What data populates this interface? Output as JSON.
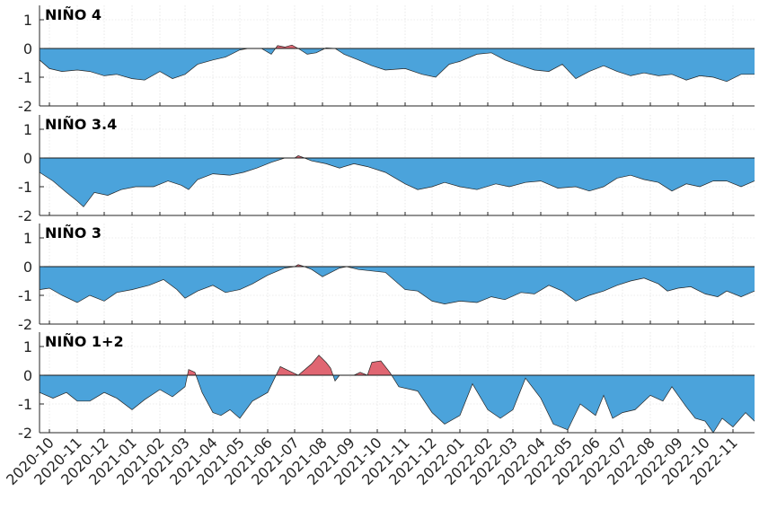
{
  "chart_data": {
    "type": "area",
    "x_axis": {
      "type": "date",
      "start": "2020-09-20",
      "end": "2022-11-25",
      "ticks": [
        "2020-10",
        "2020-11",
        "2020-12",
        "2021-01",
        "2021-02",
        "2021-03",
        "2021-04",
        "2021-05",
        "2021-06",
        "2021-07",
        "2021-08",
        "2021-09",
        "2021-10",
        "2021-11",
        "2021-12",
        "2022-01",
        "2022-02",
        "2022-03",
        "2022-04",
        "2022-05",
        "2022-06",
        "2022-07",
        "2022-08",
        "2022-09",
        "2022-10",
        "2022-11"
      ]
    },
    "ylim": [
      -2,
      1.5
    ],
    "yticks": [
      -2,
      -1,
      0,
      1
    ],
    "grid": true,
    "colors": {
      "positive": "#e06672",
      "negative": "#4ba3db",
      "line": "#262626"
    },
    "panels": [
      {
        "title": "NIÑO 4",
        "points": [
          [
            "2020-09-20",
            -0.4
          ],
          [
            "2020-10-01",
            -0.7
          ],
          [
            "2020-10-15",
            -0.8
          ],
          [
            "2020-11-01",
            -0.75
          ],
          [
            "2020-11-15",
            -0.8
          ],
          [
            "2020-12-01",
            -0.95
          ],
          [
            "2020-12-15",
            -0.9
          ],
          [
            "2021-01-01",
            -1.05
          ],
          [
            "2021-01-15",
            -1.1
          ],
          [
            "2021-02-01",
            -0.8
          ],
          [
            "2021-02-15",
            -1.05
          ],
          [
            "2021-03-01",
            -0.9
          ],
          [
            "2021-03-15",
            -0.55
          ],
          [
            "2021-04-01",
            -0.4
          ],
          [
            "2021-04-15",
            -0.3
          ],
          [
            "2021-05-01",
            -0.05
          ],
          [
            "2021-05-10",
            0.0
          ],
          [
            "2021-05-25",
            0.0
          ],
          [
            "2021-06-05",
            -0.2
          ],
          [
            "2021-06-12",
            0.1
          ],
          [
            "2021-06-20",
            0.05
          ],
          [
            "2021-06-28",
            0.12
          ],
          [
            "2021-07-05",
            0.0
          ],
          [
            "2021-07-15",
            -0.2
          ],
          [
            "2021-07-25",
            -0.15
          ],
          [
            "2021-08-05",
            0.02
          ],
          [
            "2021-08-15",
            0.0
          ],
          [
            "2021-08-25",
            -0.2
          ],
          [
            "2021-09-10",
            -0.4
          ],
          [
            "2021-09-25",
            -0.6
          ],
          [
            "2021-10-10",
            -0.75
          ],
          [
            "2021-11-01",
            -0.7
          ],
          [
            "2021-11-20",
            -0.9
          ],
          [
            "2021-12-05",
            -1.0
          ],
          [
            "2021-12-20",
            -0.55
          ],
          [
            "2022-01-01",
            -0.45
          ],
          [
            "2022-01-20",
            -0.2
          ],
          [
            "2022-02-05",
            -0.15
          ],
          [
            "2022-02-20",
            -0.4
          ],
          [
            "2022-03-10",
            -0.6
          ],
          [
            "2022-03-25",
            -0.75
          ],
          [
            "2022-04-10",
            -0.8
          ],
          [
            "2022-04-25",
            -0.55
          ],
          [
            "2022-05-10",
            -1.05
          ],
          [
            "2022-05-25",
            -0.8
          ],
          [
            "2022-06-10",
            -0.6
          ],
          [
            "2022-06-25",
            -0.8
          ],
          [
            "2022-07-10",
            -0.95
          ],
          [
            "2022-07-25",
            -0.85
          ],
          [
            "2022-08-10",
            -0.95
          ],
          [
            "2022-08-25",
            -0.9
          ],
          [
            "2022-09-10",
            -1.1
          ],
          [
            "2022-09-25",
            -0.95
          ],
          [
            "2022-10-10",
            -1.0
          ],
          [
            "2022-10-25",
            -1.15
          ],
          [
            "2022-11-10",
            -0.9
          ],
          [
            "2022-11-25",
            -0.9
          ]
        ]
      },
      {
        "title": "NIÑO 3.4",
        "points": [
          [
            "2020-09-20",
            -0.5
          ],
          [
            "2020-10-05",
            -0.8
          ],
          [
            "2020-10-20",
            -1.2
          ],
          [
            "2020-11-01",
            -1.5
          ],
          [
            "2020-11-08",
            -1.7
          ],
          [
            "2020-11-20",
            -1.2
          ],
          [
            "2020-12-05",
            -1.3
          ],
          [
            "2020-12-20",
            -1.1
          ],
          [
            "2021-01-05",
            -1.0
          ],
          [
            "2021-01-25",
            -1.0
          ],
          [
            "2021-02-10",
            -0.8
          ],
          [
            "2021-02-25",
            -0.95
          ],
          [
            "2021-03-05",
            -1.1
          ],
          [
            "2021-03-15",
            -0.75
          ],
          [
            "2021-04-01",
            -0.55
          ],
          [
            "2021-04-20",
            -0.6
          ],
          [
            "2021-05-05",
            -0.5
          ],
          [
            "2021-05-20",
            -0.35
          ],
          [
            "2021-06-05",
            -0.15
          ],
          [
            "2021-06-20",
            0.0
          ],
          [
            "2021-07-01",
            0.0
          ],
          [
            "2021-07-05",
            0.08
          ],
          [
            "2021-07-12",
            0.0
          ],
          [
            "2021-07-20",
            -0.1
          ],
          [
            "2021-08-05",
            -0.2
          ],
          [
            "2021-08-20",
            -0.35
          ],
          [
            "2021-09-05",
            -0.2
          ],
          [
            "2021-09-20",
            -0.3
          ],
          [
            "2021-10-10",
            -0.5
          ],
          [
            "2021-11-01",
            -0.9
          ],
          [
            "2021-11-15",
            -1.1
          ],
          [
            "2021-12-01",
            -1.0
          ],
          [
            "2021-12-15",
            -0.85
          ],
          [
            "2022-01-01",
            -1.0
          ],
          [
            "2022-01-20",
            -1.1
          ],
          [
            "2022-02-10",
            -0.9
          ],
          [
            "2022-02-25",
            -1.0
          ],
          [
            "2022-03-15",
            -0.85
          ],
          [
            "2022-04-01",
            -0.8
          ],
          [
            "2022-04-20",
            -1.05
          ],
          [
            "2022-05-10",
            -1.0
          ],
          [
            "2022-05-25",
            -1.15
          ],
          [
            "2022-06-10",
            -1.0
          ],
          [
            "2022-06-25",
            -0.7
          ],
          [
            "2022-07-10",
            -0.6
          ],
          [
            "2022-07-25",
            -0.75
          ],
          [
            "2022-08-10",
            -0.85
          ],
          [
            "2022-08-25",
            -1.15
          ],
          [
            "2022-09-10",
            -0.9
          ],
          [
            "2022-09-25",
            -1.0
          ],
          [
            "2022-10-10",
            -0.8
          ],
          [
            "2022-10-25",
            -0.8
          ],
          [
            "2022-11-10",
            -1.0
          ],
          [
            "2022-11-25",
            -0.8
          ]
        ]
      },
      {
        "title": "NIÑO 3",
        "points": [
          [
            "2020-09-20",
            -0.8
          ],
          [
            "2020-10-01",
            -0.75
          ],
          [
            "2020-10-15",
            -1.0
          ],
          [
            "2020-11-01",
            -1.25
          ],
          [
            "2020-11-15",
            -1.0
          ],
          [
            "2020-12-01",
            -1.2
          ],
          [
            "2020-12-15",
            -0.9
          ],
          [
            "2021-01-01",
            -0.8
          ],
          [
            "2021-01-20",
            -0.65
          ],
          [
            "2021-02-05",
            -0.45
          ],
          [
            "2021-02-20",
            -0.8
          ],
          [
            "2021-03-01",
            -1.1
          ],
          [
            "2021-03-15",
            -0.85
          ],
          [
            "2021-04-01",
            -0.65
          ],
          [
            "2021-04-15",
            -0.9
          ],
          [
            "2021-05-01",
            -0.8
          ],
          [
            "2021-05-15",
            -0.6
          ],
          [
            "2021-06-01",
            -0.3
          ],
          [
            "2021-06-20",
            -0.05
          ],
          [
            "2021-07-01",
            0.0
          ],
          [
            "2021-07-05",
            0.07
          ],
          [
            "2021-07-12",
            0.0
          ],
          [
            "2021-07-20",
            -0.1
          ],
          [
            "2021-08-01",
            -0.35
          ],
          [
            "2021-08-20",
            -0.05
          ],
          [
            "2021-08-28",
            0.0
          ],
          [
            "2021-09-10",
            -0.1
          ],
          [
            "2021-09-25",
            -0.15
          ],
          [
            "2021-10-10",
            -0.2
          ],
          [
            "2021-11-01",
            -0.8
          ],
          [
            "2021-11-15",
            -0.85
          ],
          [
            "2021-12-01",
            -1.2
          ],
          [
            "2021-12-15",
            -1.3
          ],
          [
            "2022-01-01",
            -1.2
          ],
          [
            "2022-01-20",
            -1.25
          ],
          [
            "2022-02-05",
            -1.05
          ],
          [
            "2022-02-20",
            -1.15
          ],
          [
            "2022-03-10",
            -0.9
          ],
          [
            "2022-03-25",
            -0.95
          ],
          [
            "2022-04-10",
            -0.65
          ],
          [
            "2022-04-25",
            -0.85
          ],
          [
            "2022-05-10",
            -1.2
          ],
          [
            "2022-05-25",
            -1.0
          ],
          [
            "2022-06-10",
            -0.85
          ],
          [
            "2022-06-25",
            -0.65
          ],
          [
            "2022-07-10",
            -0.5
          ],
          [
            "2022-07-25",
            -0.4
          ],
          [
            "2022-08-10",
            -0.6
          ],
          [
            "2022-08-20",
            -0.85
          ],
          [
            "2022-09-01",
            -0.75
          ],
          [
            "2022-09-15",
            -0.7
          ],
          [
            "2022-10-01",
            -0.95
          ],
          [
            "2022-10-15",
            -1.05
          ],
          [
            "2022-10-25",
            -0.85
          ],
          [
            "2022-11-10",
            -1.05
          ],
          [
            "2022-11-25",
            -0.85
          ]
        ]
      },
      {
        "title": "NIÑO 1+2",
        "points": [
          [
            "2020-09-20",
            -0.6
          ],
          [
            "2020-10-05",
            -0.8
          ],
          [
            "2020-10-20",
            -0.6
          ],
          [
            "2020-11-01",
            -0.9
          ],
          [
            "2020-11-15",
            -0.9
          ],
          [
            "2020-12-01",
            -0.6
          ],
          [
            "2020-12-15",
            -0.8
          ],
          [
            "2021-01-01",
            -1.2
          ],
          [
            "2021-01-15",
            -0.85
          ],
          [
            "2021-02-01",
            -0.5
          ],
          [
            "2021-02-15",
            -0.75
          ],
          [
            "2021-03-01",
            -0.4
          ],
          [
            "2021-03-05",
            0.2
          ],
          [
            "2021-03-12",
            0.1
          ],
          [
            "2021-03-20",
            -0.6
          ],
          [
            "2021-04-01",
            -1.3
          ],
          [
            "2021-04-10",
            -1.4
          ],
          [
            "2021-04-20",
            -1.2
          ],
          [
            "2021-05-01",
            -1.5
          ],
          [
            "2021-05-15",
            -0.9
          ],
          [
            "2021-06-01",
            -0.6
          ],
          [
            "2021-06-15",
            0.3
          ],
          [
            "2021-06-25",
            0.15
          ],
          [
            "2021-07-05",
            0.0
          ],
          [
            "2021-07-20",
            0.4
          ],
          [
            "2021-07-28",
            0.7
          ],
          [
            "2021-08-05",
            0.45
          ],
          [
            "2021-08-10",
            0.25
          ],
          [
            "2021-08-15",
            -0.2
          ],
          [
            "2021-08-20",
            0.0
          ],
          [
            "2021-09-05",
            0.0
          ],
          [
            "2021-09-12",
            0.1
          ],
          [
            "2021-09-20",
            0.0
          ],
          [
            "2021-09-25",
            0.45
          ],
          [
            "2021-10-05",
            0.5
          ],
          [
            "2021-10-15",
            0.1
          ],
          [
            "2021-10-25",
            -0.4
          ],
          [
            "2021-11-15",
            -0.55
          ],
          [
            "2021-12-01",
            -1.3
          ],
          [
            "2021-12-15",
            -1.7
          ],
          [
            "2022-01-01",
            -1.4
          ],
          [
            "2022-01-15",
            -0.3
          ],
          [
            "2022-02-01",
            -1.2
          ],
          [
            "2022-02-15",
            -1.5
          ],
          [
            "2022-03-01",
            -1.2
          ],
          [
            "2022-03-15",
            -0.1
          ],
          [
            "2022-04-01",
            -0.8
          ],
          [
            "2022-04-15",
            -1.7
          ],
          [
            "2022-05-01",
            -1.9
          ],
          [
            "2022-05-15",
            -1.0
          ],
          [
            "2022-06-01",
            -1.4
          ],
          [
            "2022-06-10",
            -0.7
          ],
          [
            "2022-06-20",
            -1.5
          ],
          [
            "2022-07-01",
            -1.3
          ],
          [
            "2022-07-15",
            -1.2
          ],
          [
            "2022-08-01",
            -0.7
          ],
          [
            "2022-08-15",
            -0.9
          ],
          [
            "2022-08-25",
            -0.4
          ],
          [
            "2022-09-10",
            -1.1
          ],
          [
            "2022-09-20",
            -1.5
          ],
          [
            "2022-10-01",
            -1.6
          ],
          [
            "2022-10-10",
            -2.0
          ],
          [
            "2022-10-20",
            -1.5
          ],
          [
            "2022-11-01",
            -1.8
          ],
          [
            "2022-11-15",
            -1.3
          ],
          [
            "2022-11-25",
            -1.6
          ]
        ]
      }
    ]
  }
}
